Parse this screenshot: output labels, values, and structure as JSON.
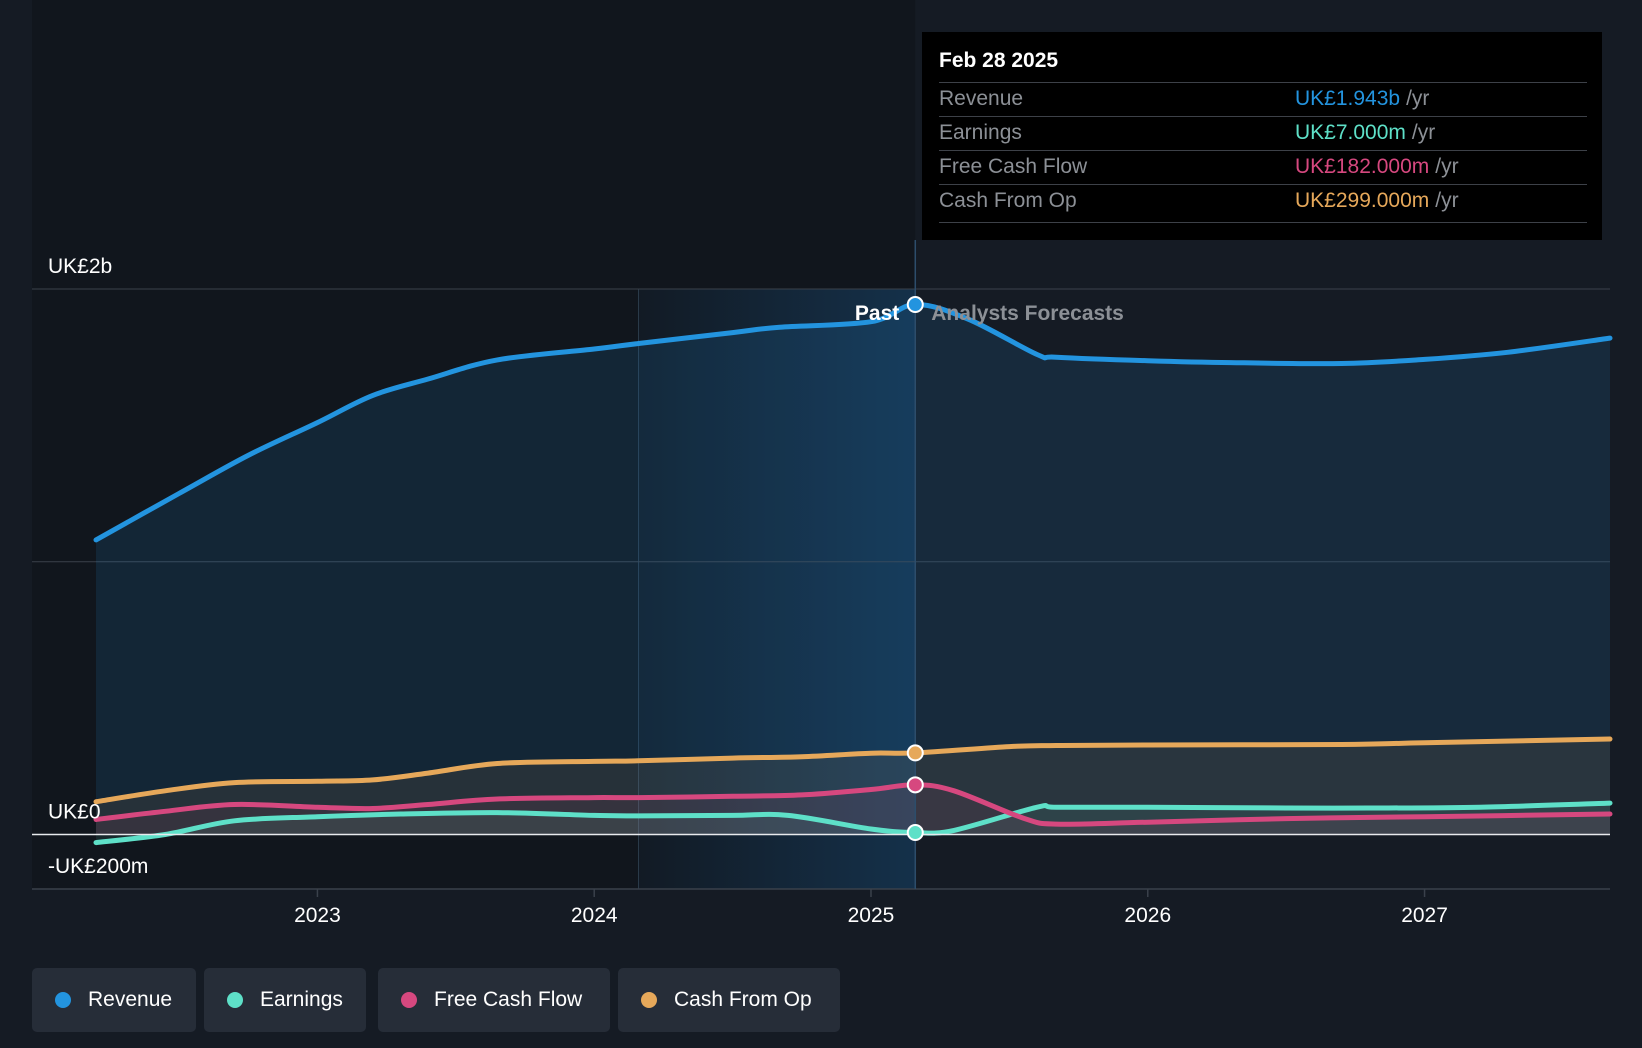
{
  "colors": {
    "revenue": "#2394df",
    "earnings": "#5ee0c8",
    "free_cash_flow": "#d6487f",
    "cash_from_op": "#e6a85a",
    "background": "#151b24"
  },
  "tooltip": {
    "date": "Feb 28 2025",
    "rows": [
      {
        "name": "Revenue",
        "value": "UK£1.943b",
        "unit": "/yr"
      },
      {
        "name": "Earnings",
        "value": "UK£7.000m",
        "unit": "/yr"
      },
      {
        "name": "Free Cash Flow",
        "value": "UK£182.000m",
        "unit": "/yr"
      },
      {
        "name": "Cash From Op",
        "value": "UK£299.000m",
        "unit": "/yr"
      }
    ]
  },
  "legend": [
    {
      "key": "revenue",
      "label": "Revenue"
    },
    {
      "key": "earnings",
      "label": "Earnings"
    },
    {
      "key": "free_cash_flow",
      "label": "Free Cash Flow"
    },
    {
      "key": "cash_from_op",
      "label": "Cash From Op"
    }
  ],
  "chart_data": {
    "type": "line",
    "title": "",
    "xlabel": "",
    "ylabel": "",
    "y_unit": "UK£m",
    "xlim": [
      2022.2,
      2027.67
    ],
    "ylim": [
      -200,
      2000
    ],
    "y_axis_labels": [
      {
        "value": 2000,
        "label": "UK£2b"
      },
      {
        "value": 0,
        "label": "UK£0"
      },
      {
        "value": -200,
        "label": "-UK£200m"
      }
    ],
    "gridlines": [
      2000,
      1000
    ],
    "x_ticks": [
      2023,
      2024,
      2025,
      2026,
      2027
    ],
    "x_tick_labels": [
      "2023",
      "2024",
      "2025",
      "2026",
      "2027"
    ],
    "past_label": "Past",
    "forecast_label": "Analysts Forecasts",
    "past_end": 2025.16,
    "highlight_start": 2024.16,
    "marker_x": 2025.16,
    "series": [
      {
        "name": "Revenue",
        "key": "revenue",
        "marker_value": 1943,
        "points": [
          [
            2022.2,
            1080
          ],
          [
            2022.5,
            1250
          ],
          [
            2022.75,
            1390
          ],
          [
            2023.0,
            1510
          ],
          [
            2023.2,
            1610
          ],
          [
            2023.4,
            1670
          ],
          [
            2023.65,
            1740
          ],
          [
            2024.0,
            1780
          ],
          [
            2024.16,
            1800
          ],
          [
            2024.5,
            1840
          ],
          [
            2024.67,
            1860
          ],
          [
            2025.0,
            1880
          ],
          [
            2025.16,
            1943
          ],
          [
            2025.35,
            1890
          ],
          [
            2025.6,
            1760
          ],
          [
            2025.67,
            1750
          ],
          [
            2026.0,
            1737
          ],
          [
            2026.3,
            1730
          ],
          [
            2026.7,
            1727
          ],
          [
            2027.0,
            1742
          ],
          [
            2027.3,
            1768
          ],
          [
            2027.67,
            1820
          ]
        ]
      },
      {
        "name": "Earnings",
        "key": "earnings",
        "marker_value": 7,
        "points": [
          [
            2022.2,
            -30
          ],
          [
            2022.45,
            0
          ],
          [
            2022.7,
            50
          ],
          [
            2023.0,
            65
          ],
          [
            2023.3,
            75
          ],
          [
            2023.65,
            80
          ],
          [
            2024.0,
            70
          ],
          [
            2024.16,
            68
          ],
          [
            2024.5,
            70
          ],
          [
            2024.7,
            70
          ],
          [
            2025.0,
            20
          ],
          [
            2025.16,
            7
          ],
          [
            2025.3,
            15
          ],
          [
            2025.6,
            100
          ],
          [
            2025.67,
            100
          ],
          [
            2026.0,
            100
          ],
          [
            2026.5,
            97
          ],
          [
            2026.8,
            97
          ],
          [
            2027.2,
            100
          ],
          [
            2027.67,
            115
          ]
        ]
      },
      {
        "name": "Free Cash Flow",
        "key": "free_cash_flow",
        "marker_value": 182,
        "points": [
          [
            2022.2,
            55
          ],
          [
            2022.45,
            85
          ],
          [
            2022.7,
            110
          ],
          [
            2023.0,
            100
          ],
          [
            2023.2,
            95
          ],
          [
            2023.4,
            110
          ],
          [
            2023.65,
            130
          ],
          [
            2024.0,
            135
          ],
          [
            2024.16,
            135
          ],
          [
            2024.5,
            140
          ],
          [
            2024.75,
            145
          ],
          [
            2025.0,
            165
          ],
          [
            2025.16,
            182
          ],
          [
            2025.3,
            160
          ],
          [
            2025.55,
            60
          ],
          [
            2025.67,
            38
          ],
          [
            2026.0,
            45
          ],
          [
            2026.5,
            58
          ],
          [
            2027.0,
            65
          ],
          [
            2027.67,
            75
          ]
        ]
      },
      {
        "name": "Cash From Op",
        "key": "cash_from_op",
        "marker_value": 299,
        "points": [
          [
            2022.2,
            120
          ],
          [
            2022.45,
            160
          ],
          [
            2022.7,
            190
          ],
          [
            2023.0,
            195
          ],
          [
            2023.2,
            200
          ],
          [
            2023.4,
            225
          ],
          [
            2023.65,
            260
          ],
          [
            2024.0,
            268
          ],
          [
            2024.16,
            270
          ],
          [
            2024.5,
            280
          ],
          [
            2024.75,
            285
          ],
          [
            2025.0,
            298
          ],
          [
            2025.16,
            299
          ],
          [
            2025.5,
            322
          ],
          [
            2025.67,
            326
          ],
          [
            2026.0,
            328
          ],
          [
            2026.7,
            330
          ],
          [
            2027.0,
            336
          ],
          [
            2027.67,
            350
          ]
        ]
      }
    ]
  }
}
